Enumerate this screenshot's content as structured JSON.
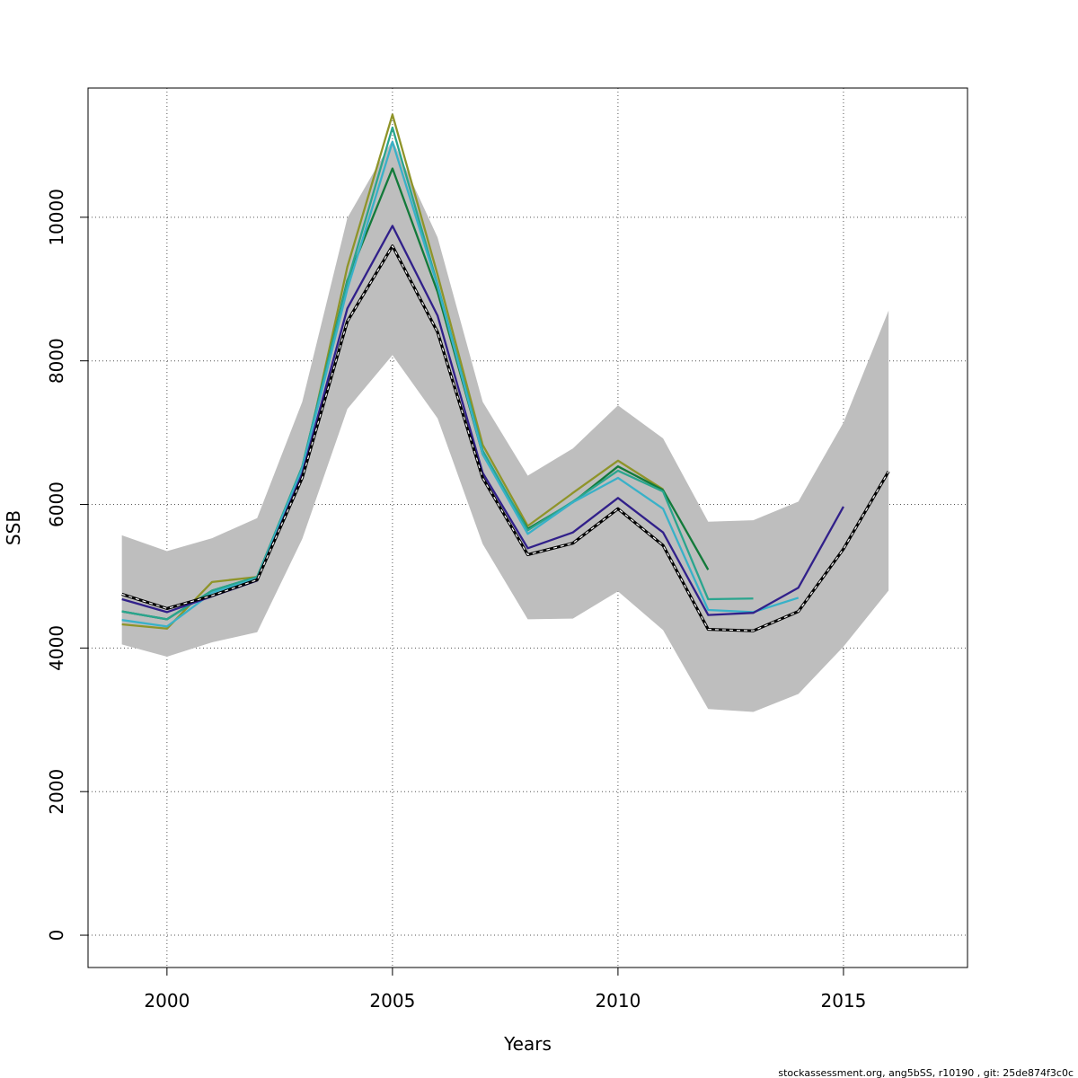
{
  "chart_data": {
    "type": "line",
    "xlabel": "Years",
    "ylabel": "SSB",
    "xlim": [
      1998.25,
      2017.75
    ],
    "ylim": [
      -450,
      11800
    ],
    "x_ticks": [
      2000,
      2005,
      2010,
      2015
    ],
    "y_ticks": [
      0,
      2000,
      4000,
      6000,
      8000,
      10000
    ],
    "grid": true,
    "band": {
      "x": [
        1999,
        2000,
        2001,
        2002,
        2003,
        2004,
        2005,
        2006,
        2007,
        2008,
        2009,
        2010,
        2011,
        2012,
        2013,
        2014,
        2015,
        2016
      ],
      "lower": [
        4050,
        3880,
        4080,
        4220,
        5520,
        7330,
        8080,
        7200,
        5450,
        4400,
        4410,
        4790,
        4250,
        3150,
        3110,
        3360,
        4020,
        4800
      ],
      "upper": [
        5570,
        5350,
        5530,
        5810,
        7430,
        9990,
        11080,
        9720,
        7430,
        6400,
        6780,
        7380,
        6920,
        5760,
        5780,
        6040,
        7140,
        8700
      ],
      "color": "#bebebe"
    },
    "series": [
      {
        "x": [
          1999,
          2000,
          2001,
          2002,
          2003,
          2004,
          2005,
          2006,
          2007,
          2008,
          2009,
          2010,
          2011,
          2012,
          2013,
          2014,
          2015,
          2016
        ],
        "values": [
          4750,
          4550,
          4730,
          4950,
          6370,
          8550,
          9600,
          8400,
          6370,
          5300,
          5460,
          5940,
          5430,
          4260,
          4240,
          4510,
          5380,
          6460
        ],
        "color": "#000000",
        "style": "dashed"
      },
      {
        "x": [
          1999,
          2000,
          2001,
          2002,
          2003,
          2004,
          2005,
          2006,
          2007,
          2008,
          2009,
          2010,
          2011,
          2012,
          2013,
          2014,
          2015
        ],
        "values": [
          4680,
          4500,
          4720,
          4940,
          6430,
          8730,
          9880,
          8630,
          6440,
          5390,
          5610,
          6090,
          5610,
          4460,
          4490,
          4840,
          5970
        ],
        "color": "#31208a",
        "style": "solid"
      },
      {
        "x": [
          1999,
          2000,
          2001,
          2002,
          2003,
          2004,
          2005,
          2006,
          2007,
          2008,
          2009,
          2010,
          2011,
          2012,
          2013,
          2014
        ],
        "values": [
          4390,
          4300,
          4770,
          4970,
          6500,
          9000,
          11050,
          9040,
          6700,
          5590,
          6030,
          6370,
          5940,
          4530,
          4500,
          4700
        ],
        "color": "#38b1c8",
        "style": "solid"
      },
      {
        "x": [
          1999,
          2000,
          2001,
          2002,
          2003,
          2004,
          2005,
          2006,
          2007,
          2008,
          2009,
          2010,
          2011,
          2012,
          2013
        ],
        "values": [
          4510,
          4400,
          4800,
          4990,
          6530,
          9100,
          11250,
          9060,
          6750,
          5640,
          6040,
          6470,
          6180,
          4680,
          4690
        ],
        "color": "#2aa58e",
        "style": "solid"
      },
      {
        "x": [
          1999,
          2000,
          2001,
          2002,
          2003,
          2004,
          2005,
          2006,
          2007,
          2008,
          2009,
          2010,
          2011,
          2012
        ],
        "values": [
          4510,
          4400,
          4800,
          4990,
          6520,
          9120,
          10680,
          8960,
          6700,
          5660,
          6030,
          6530,
          6200,
          5090
        ],
        "color": "#137a3a",
        "style": "solid"
      },
      {
        "x": [
          1999,
          2000,
          2001,
          2002,
          2003,
          2004,
          2005,
          2006,
          2007,
          2008,
          2009,
          2010,
          2011
        ],
        "values": [
          4330,
          4270,
          4920,
          4990,
          6450,
          9310,
          11430,
          9200,
          6830,
          5700,
          6160,
          6610,
          6210
        ],
        "color": "#8f9429",
        "style": "solid"
      }
    ]
  },
  "footer": {
    "text": "stockassessment.org, ang5bSS, r10190 , git: 25de874f3c0c"
  }
}
